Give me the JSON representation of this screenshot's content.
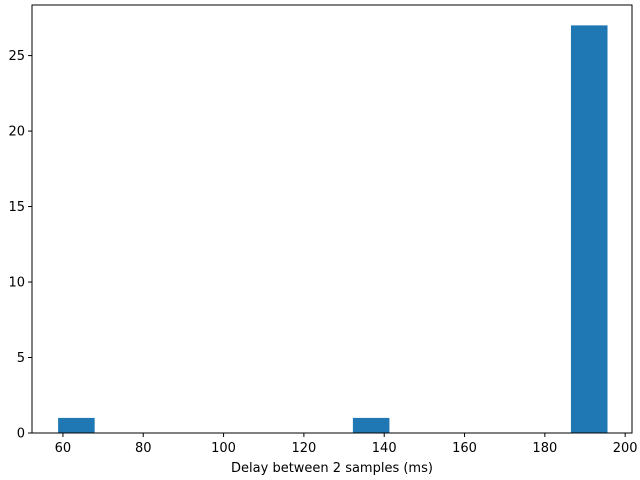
{
  "chart_data": {
    "type": "bar",
    "title": "",
    "xlabel": "Delay between 2 samples (ms)",
    "ylabel": "",
    "xlim": [
      52.3,
      201.7
    ],
    "ylim": [
      0,
      28.35
    ],
    "x_ticks": [
      60,
      80,
      100,
      120,
      140,
      160,
      180,
      200
    ],
    "y_ticks": [
      0,
      5,
      10,
      15,
      20,
      25
    ],
    "bins": [
      {
        "start": 58.8,
        "end": 67.9,
        "value": 1
      },
      {
        "start": 132.2,
        "end": 141.3,
        "value": 1
      },
      {
        "start": 186.5,
        "end": 195.6,
        "value": 27
      }
    ],
    "colors": {
      "bar": "#1f77b4",
      "axis": "#000000"
    }
  }
}
